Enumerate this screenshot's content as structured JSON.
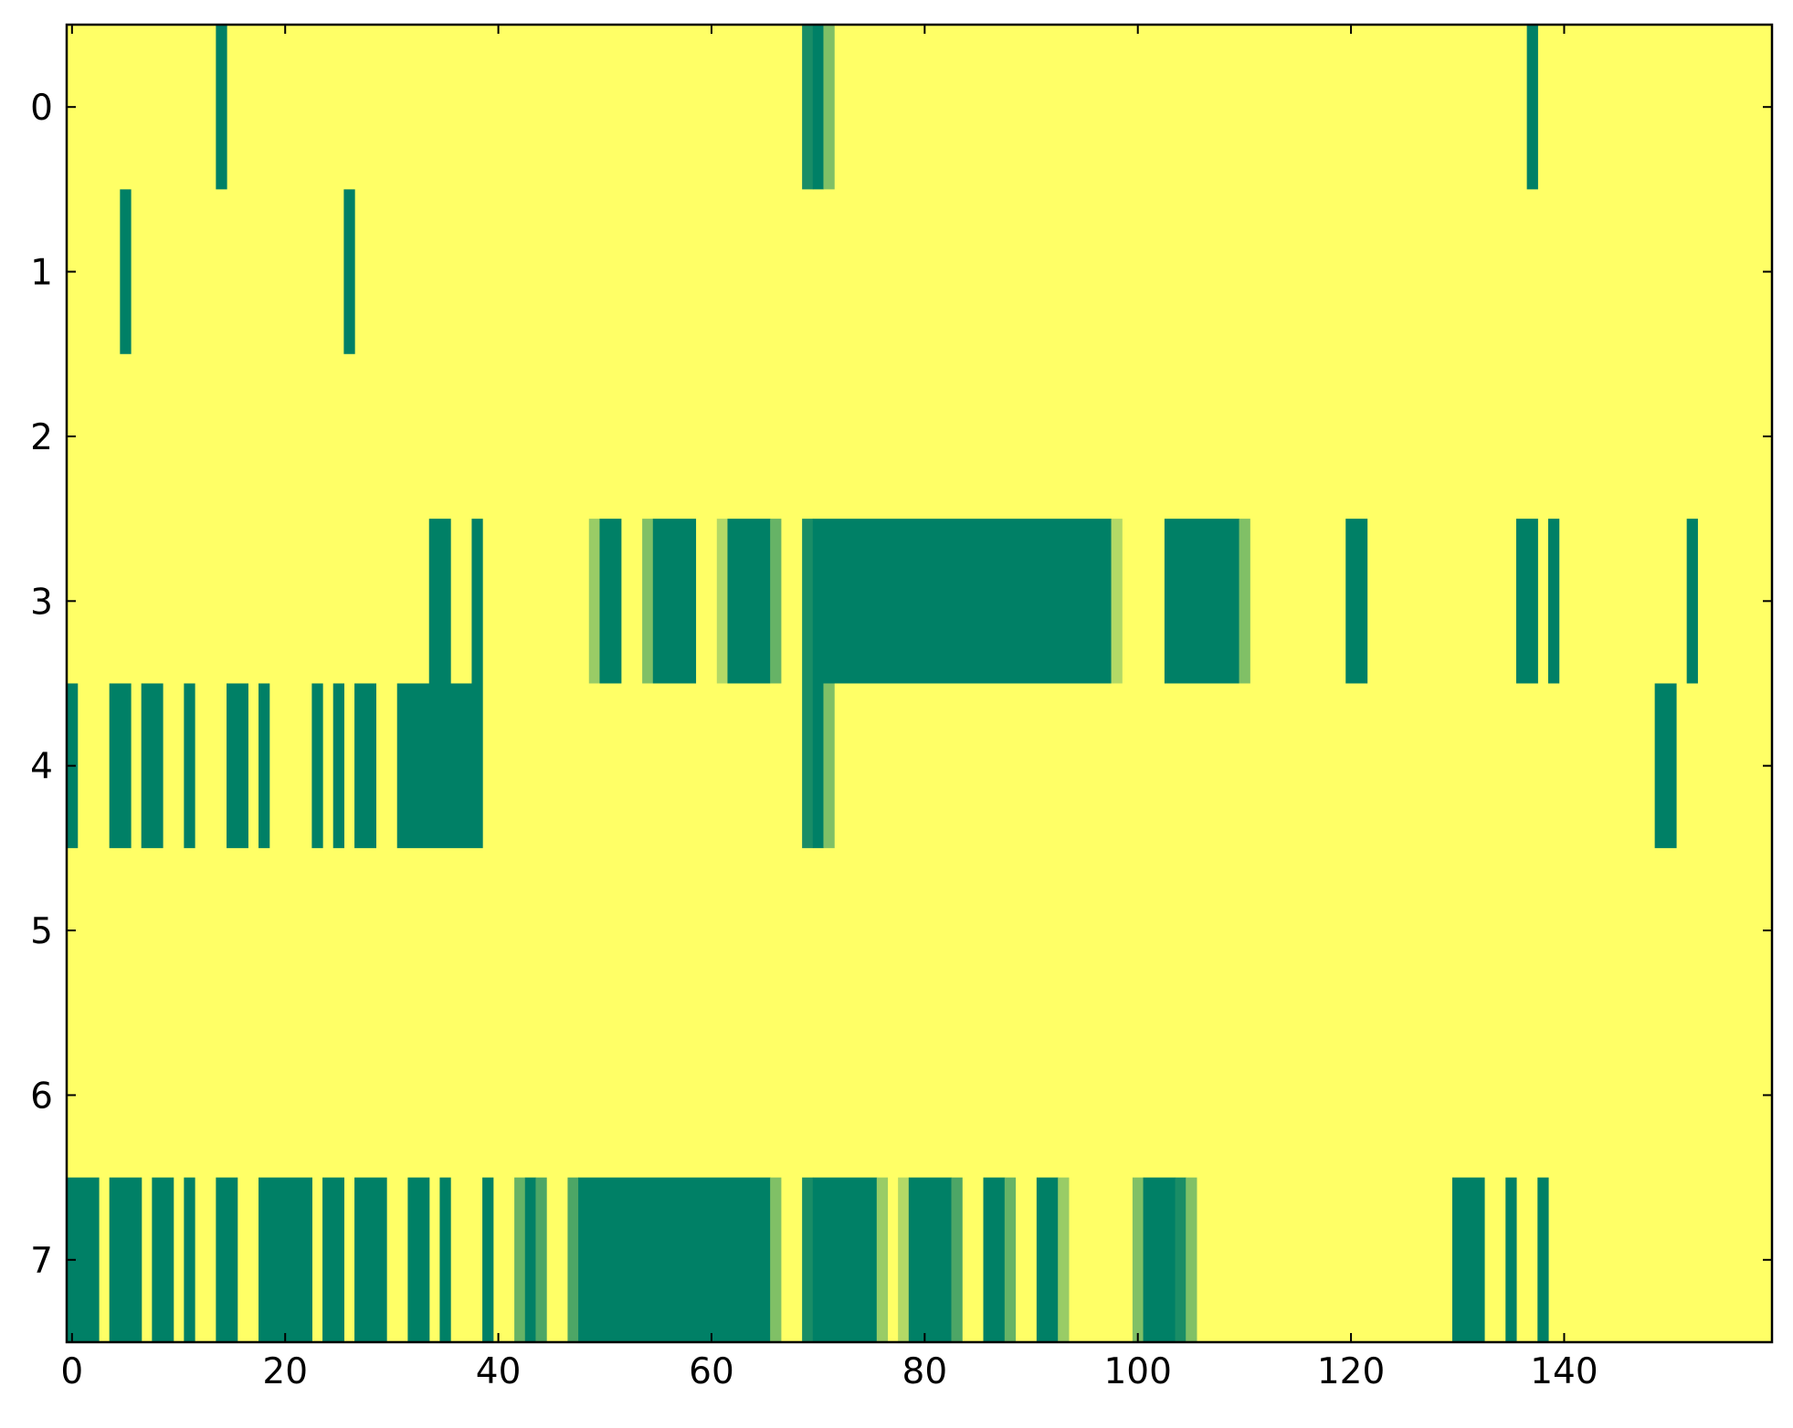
{
  "chart_data": {
    "type": "heatmap",
    "title": "",
    "xlabel": "",
    "ylabel": "",
    "xlim": [
      -0.5,
      159.5
    ],
    "ylim": [
      7.5,
      -0.5
    ],
    "x_ticks": [
      0,
      20,
      40,
      60,
      80,
      100,
      120,
      140
    ],
    "x_tick_labels": [
      "0",
      "20",
      "40",
      "60",
      "80",
      "100",
      "120",
      "140"
    ],
    "y_ticks": [
      0,
      1,
      2,
      3,
      4,
      5,
      6,
      7
    ],
    "y_tick_labels": [
      "0",
      "1",
      "2",
      "3",
      "4",
      "5",
      "6",
      "7"
    ],
    "grid": false,
    "colormap": "summer_r",
    "background_value": 0,
    "colors": {
      "low": "#ffff66",
      "high": "#008066",
      "light_green": "#aad666",
      "mid_green": "#55aa66",
      "dark_green": "#1a8c66"
    },
    "rows": 8,
    "cols": 160,
    "cells": [
      {
        "row": 0,
        "segments": [
          [
            14,
            14,
            1.0
          ],
          [
            69,
            69,
            0.9
          ],
          [
            70,
            70,
            1.0
          ],
          [
            71,
            71,
            0.5
          ],
          [
            137,
            137,
            1.0
          ]
        ]
      },
      {
        "row": 1,
        "segments": [
          [
            5,
            5,
            1.0
          ],
          [
            26,
            26,
            1.0
          ]
        ]
      },
      {
        "row": 2,
        "segments": []
      },
      {
        "row": 3,
        "segments": [
          [
            34,
            35,
            1.0
          ],
          [
            38,
            38,
            1.0
          ],
          [
            49,
            49,
            0.4
          ],
          [
            50,
            51,
            1.0
          ],
          [
            54,
            54,
            0.5
          ],
          [
            55,
            58,
            1.0
          ],
          [
            61,
            61,
            0.3
          ],
          [
            62,
            65,
            1.0
          ],
          [
            66,
            66,
            0.6
          ],
          [
            69,
            69,
            0.9
          ],
          [
            70,
            97,
            1.0
          ],
          [
            98,
            98,
            0.3
          ],
          [
            103,
            109,
            1.0
          ],
          [
            110,
            110,
            0.5
          ],
          [
            120,
            121,
            1.0
          ],
          [
            136,
            137,
            1.0
          ],
          [
            139,
            139,
            1.0
          ],
          [
            152,
            152,
            1.0
          ]
        ]
      },
      {
        "row": 4,
        "segments": [
          [
            0,
            0,
            1.0
          ],
          [
            4,
            5,
            1.0
          ],
          [
            7,
            8,
            1.0
          ],
          [
            11,
            11,
            1.0
          ],
          [
            15,
            16,
            1.0
          ],
          [
            18,
            18,
            1.0
          ],
          [
            23,
            23,
            1.0
          ],
          [
            25,
            25,
            1.0
          ],
          [
            27,
            28,
            1.0
          ],
          [
            31,
            38,
            1.0
          ],
          [
            69,
            69,
            0.9
          ],
          [
            70,
            70,
            1.0
          ],
          [
            71,
            71,
            0.5
          ],
          [
            149,
            150,
            1.0
          ]
        ]
      },
      {
        "row": 5,
        "segments": []
      },
      {
        "row": 6,
        "segments": []
      },
      {
        "row": 7,
        "segments": [
          [
            0,
            2,
            1.0
          ],
          [
            4,
            6,
            1.0
          ],
          [
            8,
            9,
            1.0
          ],
          [
            11,
            11,
            1.0
          ],
          [
            14,
            15,
            1.0
          ],
          [
            18,
            22,
            1.0
          ],
          [
            24,
            25,
            1.0
          ],
          [
            27,
            29,
            1.0
          ],
          [
            32,
            33,
            1.0
          ],
          [
            35,
            35,
            1.0
          ],
          [
            39,
            39,
            1.0
          ],
          [
            42,
            42,
            0.6
          ],
          [
            43,
            43,
            1.0
          ],
          [
            44,
            44,
            0.7
          ],
          [
            47,
            47,
            0.7
          ],
          [
            48,
            65,
            1.0
          ],
          [
            66,
            66,
            0.5
          ],
          [
            69,
            69,
            0.9
          ],
          [
            70,
            75,
            1.0
          ],
          [
            76,
            76,
            0.4
          ],
          [
            78,
            78,
            0.3
          ],
          [
            79,
            82,
            1.0
          ],
          [
            83,
            83,
            0.7
          ],
          [
            86,
            87,
            1.0
          ],
          [
            88,
            88,
            0.6
          ],
          [
            91,
            92,
            1.0
          ],
          [
            93,
            93,
            0.4
          ],
          [
            100,
            100,
            0.5
          ],
          [
            101,
            103,
            1.0
          ],
          [
            104,
            104,
            0.9
          ],
          [
            105,
            105,
            0.5
          ],
          [
            130,
            132,
            1.0
          ],
          [
            135,
            135,
            1.0
          ],
          [
            138,
            138,
            1.0
          ]
        ]
      }
    ]
  }
}
